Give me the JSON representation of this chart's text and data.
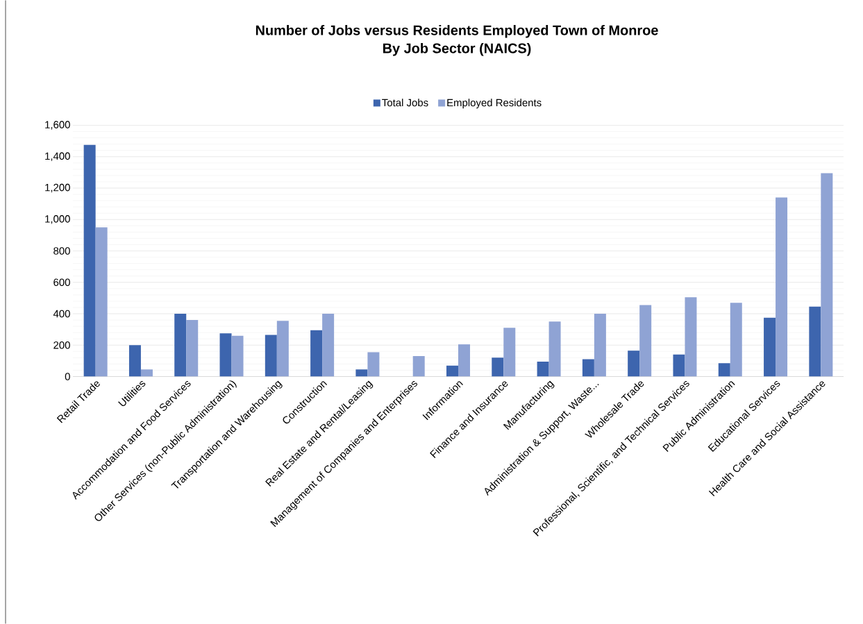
{
  "chart_data": {
    "type": "bar",
    "title": "Number of Jobs versus Residents Employed Town of Monroe",
    "subtitle": "By Job Sector (NAICS)",
    "categories": [
      "Retail Trade",
      "Utilities",
      "Accommodation and Food Services",
      "Other Services (non-Public Administration)",
      "Transportation and Warehousing",
      "Construction",
      "Real Estate and Rental/Leasing",
      "Management of Companies and Enterprises",
      "Information",
      "Finance and Insurance",
      "Manufacturing",
      "Administration & Support, Waste...",
      "Wholesale Trade",
      "Professional, Scientific, and Technical Services",
      "Public Administration",
      "Educational Services",
      "Health Care and Social Assistance"
    ],
    "series": [
      {
        "name": "Total Jobs",
        "color": "#3d65ae",
        "values": [
          1475,
          200,
          400,
          275,
          265,
          295,
          45,
          0,
          70,
          120,
          95,
          110,
          165,
          140,
          85,
          375,
          445
        ]
      },
      {
        "name": "Employed Residents",
        "color": "#8fa3d4",
        "values": [
          950,
          45,
          360,
          260,
          355,
          400,
          155,
          130,
          205,
          310,
          350,
          400,
          455,
          505,
          470,
          1140,
          1295
        ]
      }
    ],
    "ylim": [
      0,
      1600
    ],
    "yticks": [
      0,
      200,
      400,
      600,
      800,
      {
        "value": 1000,
        "label": "1,000"
      },
      {
        "value": 1200,
        "label": "1,200"
      },
      {
        "value": 1400,
        "label": "1,400"
      },
      {
        "value": 1600,
        "label": "1,600"
      }
    ],
    "grid": "y",
    "legend": "top"
  }
}
